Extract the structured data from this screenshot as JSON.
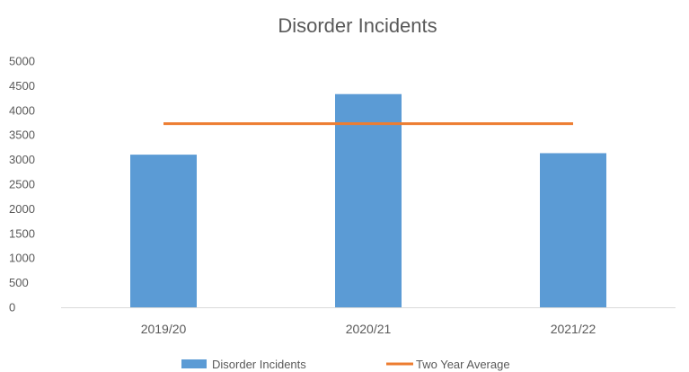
{
  "chart_data": {
    "type": "bar",
    "title": "Disorder Incidents",
    "xlabel": "",
    "ylabel": "",
    "categories": [
      "2019/20",
      "2020/21",
      "2021/22"
    ],
    "series": [
      {
        "name": "Disorder Incidents",
        "type": "bar",
        "color": "#5B9BD5",
        "values": [
          3100,
          4330,
          3130
        ]
      },
      {
        "name": "Two Year Average",
        "type": "line",
        "color": "#ED7D31",
        "values": [
          3730,
          3730,
          3730
        ]
      }
    ],
    "ylim": [
      0,
      5000
    ],
    "yticks": [
      "0",
      "500",
      "1000",
      "1500",
      "2000",
      "2500",
      "3000",
      "3500",
      "4000",
      "4500",
      "5000"
    ],
    "grid": false,
    "legend": "bottom"
  }
}
